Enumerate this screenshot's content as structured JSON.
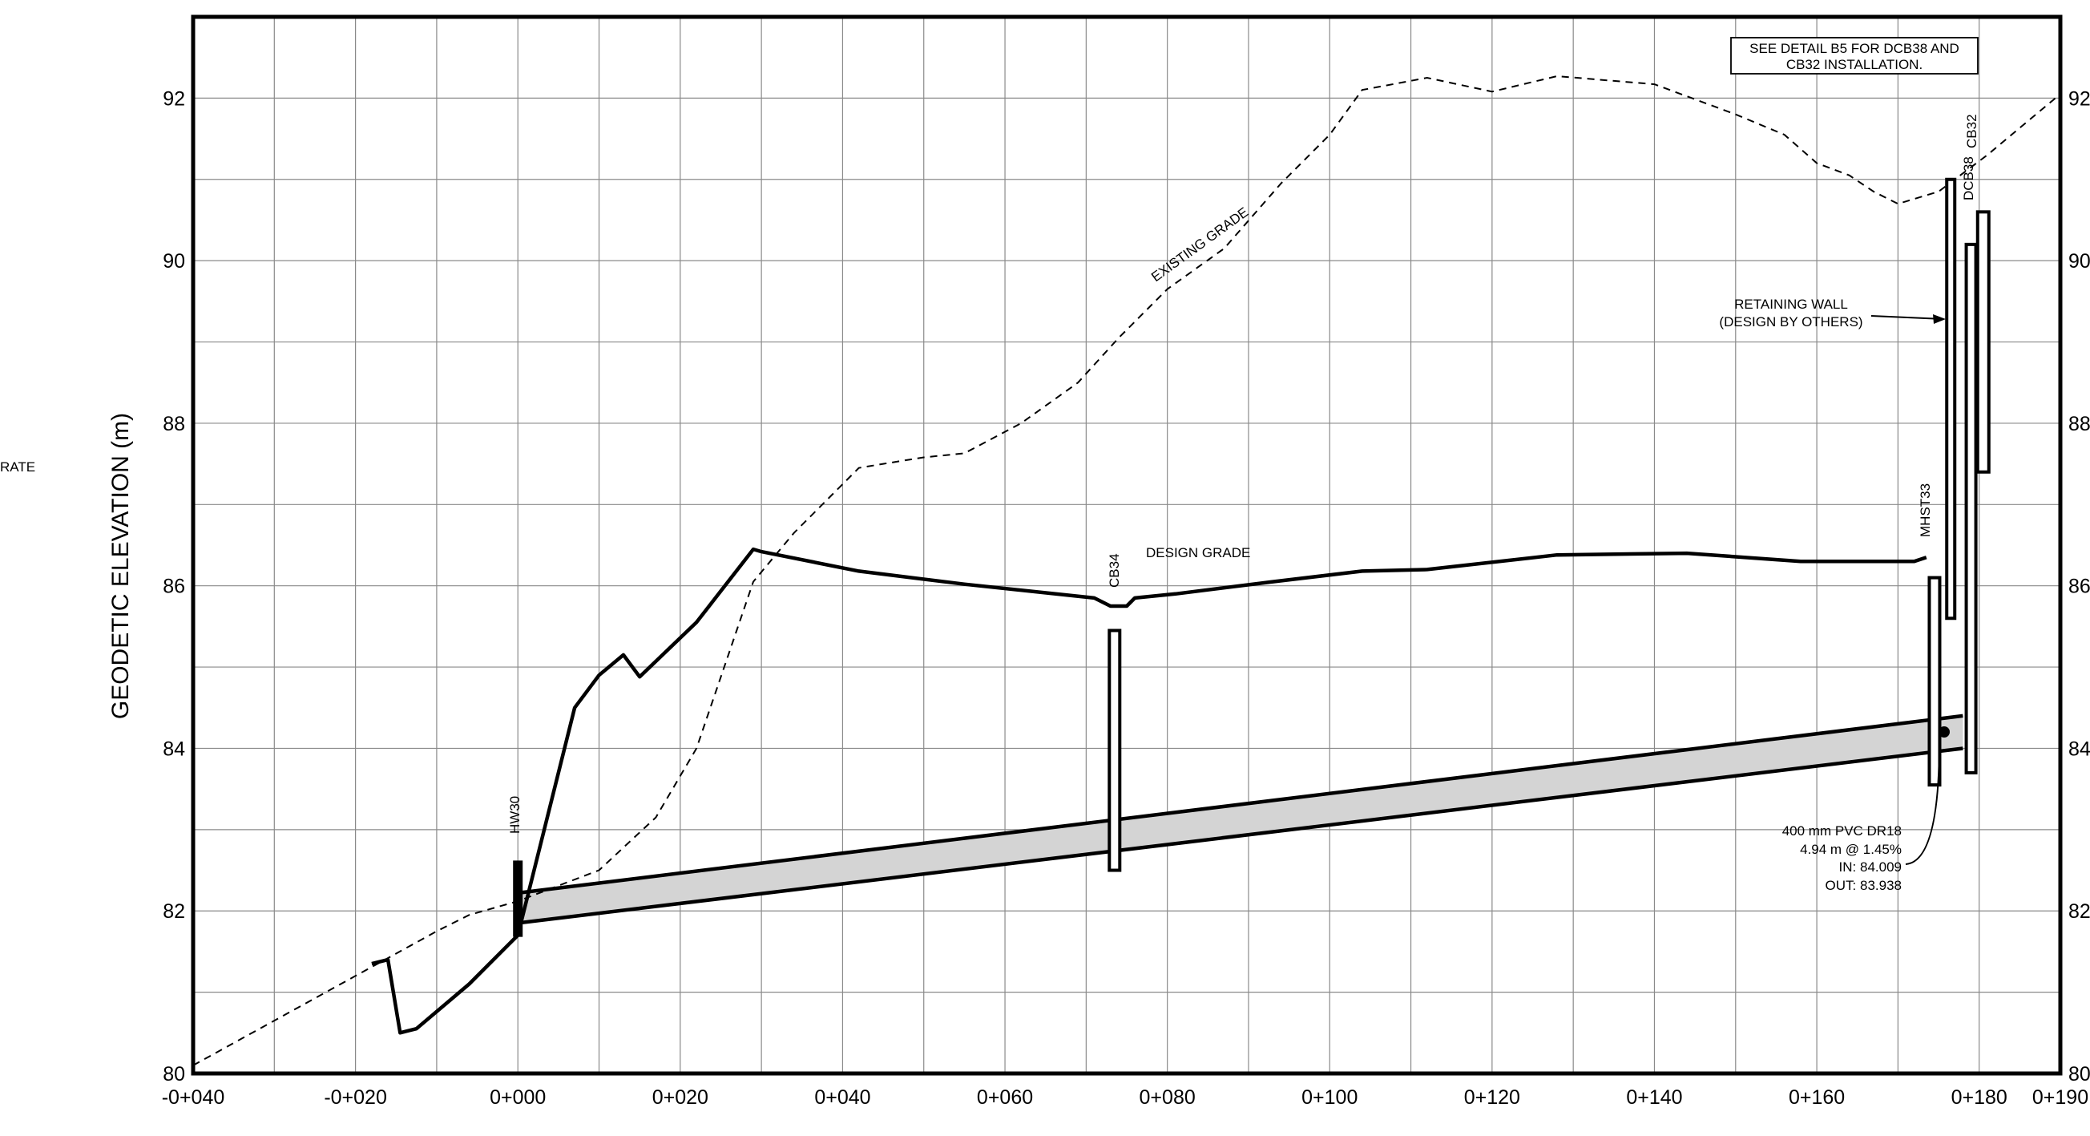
{
  "title": "",
  "left_margin_fragment": "RATE",
  "axis": {
    "y_label": "GEODETIC ELEVATION (m)",
    "y_ticks": [
      "80",
      "82",
      "84",
      "86",
      "88",
      "90",
      "92"
    ],
    "x_ticks": [
      "-0+040",
      "-0+020",
      "0+000",
      "0+020",
      "0+040",
      "0+060",
      "0+080",
      "0+100",
      "0+120",
      "0+140",
      "0+160",
      "0+180",
      "0+190"
    ],
    "y_range": [
      80,
      93
    ],
    "x_range_chainage_m": [
      -40,
      190
    ],
    "grid": "every 10 m chainage, every 1 m elevation"
  },
  "notes": {
    "detail_box_line1": "SEE DETAIL B5 FOR  DCB38 AND",
    "detail_box_line2": "CB32 INSTALLATION.",
    "retaining_wall_line1": "RETAINING WALL",
    "retaining_wall_line2": "(DESIGN BY OTHERS)",
    "existing_grade": "EXISTING GRADE",
    "design_grade": "DESIGN GRADE",
    "pipe_line1": "400 mm PVC DR18",
    "pipe_line2": "4.94 m @ 1.45%",
    "pipe_line3": "IN: 84.009",
    "pipe_line4": "OUT: 83.938"
  },
  "structures": {
    "hw30": "HW30",
    "cb34": "CB34",
    "mhst33": "MHST33",
    "dcb38": "DCB38",
    "cb32": "CB32"
  },
  "chart_data": {
    "type": "line",
    "series": [
      {
        "name": "EXISTING GRADE",
        "style": "dashed",
        "points": [
          [
            -40,
            80.1
          ],
          [
            -30,
            80.65
          ],
          [
            -20,
            81.2
          ],
          [
            -10,
            81.75
          ],
          [
            -6,
            81.95
          ],
          [
            0,
            82.12
          ],
          [
            10,
            82.5
          ],
          [
            17,
            83.15
          ],
          [
            22,
            84.0
          ],
          [
            29,
            86.05
          ],
          [
            34,
            86.65
          ],
          [
            42,
            87.45
          ],
          [
            45,
            87.5
          ],
          [
            50,
            87.58
          ],
          [
            55,
            87.63
          ],
          [
            62,
            88.0
          ],
          [
            69,
            88.5
          ],
          [
            74,
            89.05
          ],
          [
            80,
            89.65
          ],
          [
            87,
            90.15
          ],
          [
            94,
            90.95
          ],
          [
            100,
            91.55
          ],
          [
            104,
            92.1
          ],
          [
            112,
            92.25
          ],
          [
            120,
            92.08
          ],
          [
            128,
            92.27
          ],
          [
            140,
            92.17
          ],
          [
            150,
            91.8
          ],
          [
            156,
            91.55
          ],
          [
            160,
            91.2
          ],
          [
            164,
            91.05
          ],
          [
            167,
            90.85
          ],
          [
            170,
            90.7
          ],
          [
            175,
            90.85
          ],
          [
            181,
            91.3
          ],
          [
            190,
            92.05
          ]
        ]
      },
      {
        "name": "DESIGN GRADE",
        "style": "solid",
        "points": [
          [
            -18,
            81.35
          ],
          [
            -16,
            81.4
          ],
          [
            -14.5,
            80.5
          ],
          [
            -12.5,
            80.55
          ],
          [
            -6,
            81.1
          ],
          [
            0,
            81.7
          ],
          [
            7,
            84.5
          ],
          [
            10,
            84.9
          ],
          [
            13,
            85.15
          ],
          [
            15,
            84.88
          ],
          [
            22,
            85.55
          ],
          [
            29,
            86.45
          ],
          [
            30,
            86.42
          ],
          [
            42,
            86.18
          ],
          [
            55,
            86.02
          ],
          [
            71,
            85.85
          ],
          [
            73,
            85.75
          ],
          [
            75,
            85.75
          ],
          [
            76,
            85.85
          ],
          [
            81,
            85.9
          ],
          [
            93,
            86.05
          ],
          [
            104,
            86.18
          ],
          [
            112,
            86.2
          ],
          [
            128,
            86.38
          ],
          [
            144,
            86.4
          ],
          [
            158,
            86.3
          ],
          [
            172,
            86.3
          ],
          [
            173.5,
            86.35
          ]
        ]
      },
      {
        "name": "400 mm PVC DR18 (crown)",
        "style": "solid",
        "points": [
          [
            0,
            82.22
          ],
          [
            178,
            84.4
          ]
        ]
      },
      {
        "name": "400 mm PVC DR18 (invert)",
        "style": "solid",
        "points": [
          [
            0,
            81.85
          ],
          [
            178,
            84.0
          ]
        ]
      }
    ],
    "structures": [
      {
        "name": "HW30",
        "chainage": 0,
        "bottom": 81.7,
        "top": 82.6
      },
      {
        "name": "CB34",
        "chainage": 73.5,
        "bottom": 82.5,
        "top": 85.45
      },
      {
        "name": "MHST33",
        "chainage": 174.5,
        "bottom": 83.55,
        "top": 86.1
      },
      {
        "name": "RETAINING WALL",
        "chainage": 176.5,
        "bottom": 85.6,
        "top": 91.0
      },
      {
        "name": "DCB38",
        "chainage": 179,
        "bottom": 83.7,
        "top": 90.2
      },
      {
        "name": "CB32",
        "chainage": 180.5,
        "bottom": 87.4,
        "top": 90.6
      }
    ]
  }
}
